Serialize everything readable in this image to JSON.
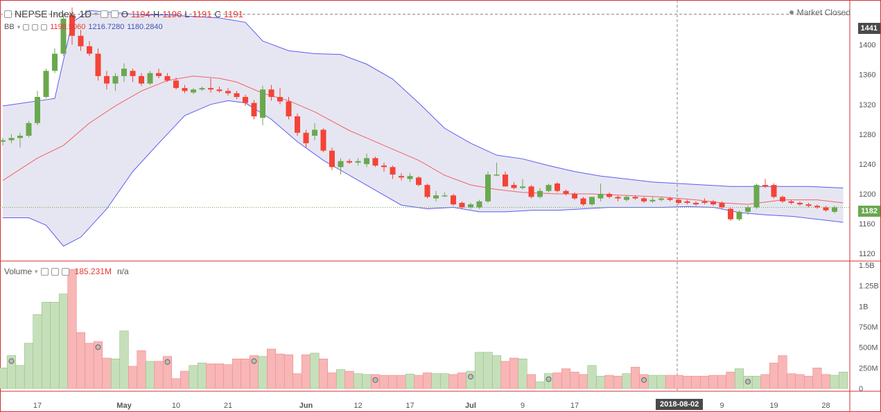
{
  "header": {
    "symbol": "NEPSE Index, 1D",
    "ohlc": {
      "o_label": "O",
      "o": "1194",
      "h_label": "H",
      "h": "1196",
      "l_label": "L",
      "l": "1191",
      "c_label": "C",
      "c": "1191"
    },
    "status": "Market Closed",
    "bb_label": "BB",
    "bb_values": [
      "1198.5060",
      "1216.7280",
      "1180.2840"
    ],
    "volume_label": "Volume",
    "volume_value": "185.231M",
    "volume_na": "n/a",
    "last_price_tag": "1182",
    "crosshair_price_tag": "1441",
    "crosshair_date_tag": "2018-08-02"
  },
  "colors": {
    "up": "#6aa84f",
    "down": "#f44336",
    "up_vol": "#c6dfbb",
    "down_vol": "#f8b6b6",
    "bb_fill": "#e6e6f2",
    "bb_band": "#5c5cf2",
    "bb_mid": "#f06262",
    "frame": "#d32f2f"
  },
  "chart_data": [
    {
      "type": "candlestick",
      "title": "NEPSE Index, 1D",
      "ylim": [
        1110,
        1460
      ],
      "y_ticks": [
        1120,
        1160,
        1200,
        1240,
        1280,
        1320,
        1360,
        1400
      ],
      "x_tick_labels": [
        {
          "label": "17",
          "i": 4
        },
        {
          "label": "May",
          "i": 14
        },
        {
          "label": "10",
          "i": 20
        },
        {
          "label": "21",
          "i": 26
        },
        {
          "label": "Jun",
          "i": 35
        },
        {
          "label": "12",
          "i": 41
        },
        {
          "label": "17",
          "i": 47
        },
        {
          "label": "Jul",
          "i": 54
        },
        {
          "label": "9",
          "i": 60
        },
        {
          "label": "17",
          "i": 66
        },
        {
          "label": "9",
          "i": 83
        },
        {
          "label": "19",
          "i": 89
        },
        {
          "label": "28",
          "i": 95
        }
      ],
      "candles": [
        [
          1270,
          1275,
          1265,
          1272
        ],
        [
          1272,
          1280,
          1268,
          1275
        ],
        [
          1275,
          1282,
          1262,
          1278
        ],
        [
          1278,
          1298,
          1276,
          1295
        ],
        [
          1295,
          1338,
          1292,
          1330
        ],
        [
          1330,
          1368,
          1328,
          1365
        ],
        [
          1365,
          1395,
          1362,
          1388
        ],
        [
          1388,
          1440,
          1385,
          1435
        ],
        [
          1440,
          1450,
          1400,
          1412
        ],
        [
          1412,
          1420,
          1392,
          1398
        ],
        [
          1398,
          1405,
          1385,
          1388
        ],
        [
          1388,
          1395,
          1352,
          1358
        ],
        [
          1358,
          1365,
          1340,
          1348
        ],
        [
          1348,
          1362,
          1338,
          1358
        ],
        [
          1358,
          1375,
          1350,
          1368
        ],
        [
          1365,
          1368,
          1350,
          1358
        ],
        [
          1358,
          1362,
          1345,
          1348
        ],
        [
          1348,
          1365,
          1346,
          1362
        ],
        [
          1362,
          1368,
          1355,
          1358
        ],
        [
          1358,
          1362,
          1350,
          1352
        ],
        [
          1352,
          1356,
          1340,
          1342
        ],
        [
          1342,
          1346,
          1335,
          1338
        ],
        [
          1336,
          1342,
          1334,
          1340
        ],
        [
          1340,
          1344,
          1338,
          1342
        ],
        [
          1342,
          1355,
          1336,
          1340
        ],
        [
          1340,
          1344,
          1336,
          1338
        ],
        [
          1338,
          1342,
          1332,
          1335
        ],
        [
          1335,
          1338,
          1327,
          1330
        ],
        [
          1330,
          1333,
          1318,
          1322
        ],
        [
          1322,
          1326,
          1300,
          1304
        ],
        [
          1302,
          1345,
          1292,
          1340
        ],
        [
          1340,
          1346,
          1325,
          1330
        ],
        [
          1330,
          1342,
          1320,
          1324
        ],
        [
          1324,
          1330,
          1300,
          1304
        ],
        [
          1304,
          1308,
          1278,
          1282
        ],
        [
          1282,
          1286,
          1262,
          1268
        ],
        [
          1278,
          1295,
          1272,
          1286
        ],
        [
          1286,
          1288,
          1256,
          1258
        ],
        [
          1258,
          1262,
          1232,
          1236
        ],
        [
          1236,
          1248,
          1226,
          1244
        ],
        [
          1244,
          1247,
          1240,
          1242
        ],
        [
          1242,
          1248,
          1238,
          1244
        ],
        [
          1240,
          1254,
          1236,
          1248
        ],
        [
          1248,
          1250,
          1236,
          1238
        ],
        [
          1238,
          1242,
          1230,
          1236
        ],
        [
          1236,
          1238,
          1220,
          1226
        ],
        [
          1224,
          1228,
          1218,
          1222
        ],
        [
          1220,
          1228,
          1216,
          1224
        ],
        [
          1222,
          1224,
          1210,
          1212
        ],
        [
          1212,
          1214,
          1194,
          1196
        ],
        [
          1194,
          1204,
          1190,
          1198
        ],
        [
          1198,
          1202,
          1196,
          1198
        ],
        [
          1198,
          1200,
          1184,
          1186
        ],
        [
          1188,
          1190,
          1180,
          1182
        ],
        [
          1182,
          1188,
          1180,
          1186
        ],
        [
          1182,
          1192,
          1180,
          1190
        ],
        [
          1190,
          1230,
          1188,
          1226
        ],
        [
          1226,
          1242,
          1224,
          1226
        ],
        [
          1226,
          1230,
          1210,
          1210
        ],
        [
          1212,
          1216,
          1206,
          1208
        ],
        [
          1208,
          1220,
          1206,
          1210
        ],
        [
          1210,
          1212,
          1194,
          1196
        ],
        [
          1196,
          1208,
          1194,
          1204
        ],
        [
          1204,
          1214,
          1202,
          1212
        ],
        [
          1214,
          1216,
          1202,
          1204
        ],
        [
          1204,
          1206,
          1198,
          1200
        ],
        [
          1200,
          1202,
          1192,
          1194
        ],
        [
          1194,
          1196,
          1184,
          1186
        ],
        [
          1186,
          1196,
          1184,
          1196
        ],
        [
          1194,
          1214,
          1190,
          1200
        ],
        [
          1200,
          1202,
          1194,
          1196
        ],
        [
          1196,
          1198,
          1190,
          1194
        ],
        [
          1192,
          1198,
          1190,
          1196
        ],
        [
          1196,
          1198,
          1192,
          1194
        ],
        [
          1194,
          1196,
          1188,
          1190
        ],
        [
          1190,
          1196,
          1188,
          1192
        ],
        [
          1192,
          1196,
          1190,
          1194
        ],
        [
          1194,
          1196,
          1190,
          1192
        ],
        [
          1192,
          1194,
          1186,
          1188
        ],
        [
          1190,
          1192,
          1186,
          1188
        ],
        [
          1188,
          1190,
          1184,
          1186
        ],
        [
          1190,
          1194,
          1186,
          1188
        ],
        [
          1190,
          1192,
          1184,
          1186
        ],
        [
          1188,
          1190,
          1180,
          1182
        ],
        [
          1180,
          1182,
          1164,
          1166
        ],
        [
          1166,
          1178,
          1164,
          1176
        ],
        [
          1176,
          1184,
          1172,
          1182
        ],
        [
          1182,
          1214,
          1180,
          1212
        ],
        [
          1212,
          1220,
          1208,
          1210
        ],
        [
          1212,
          1214,
          1194,
          1196
        ],
        [
          1196,
          1198,
          1188,
          1190
        ],
        [
          1190,
          1192,
          1186,
          1188
        ],
        [
          1188,
          1190,
          1184,
          1186
        ],
        [
          1186,
          1188,
          1182,
          1184
        ],
        [
          1184,
          1186,
          1180,
          1182
        ],
        [
          1182,
          1184,
          1176,
          1178
        ],
        [
          1176,
          1184,
          1174,
          1182
        ]
      ],
      "bb_upper": [
        [
          0,
          1318
        ],
        [
          6,
          1328
        ],
        [
          8,
          1430
        ],
        [
          10,
          1446
        ],
        [
          13,
          1443
        ],
        [
          16,
          1440
        ],
        [
          19,
          1440
        ],
        [
          22,
          1438
        ],
        [
          25,
          1436
        ],
        [
          28,
          1430
        ],
        [
          30,
          1405
        ],
        [
          33,
          1392
        ],
        [
          36,
          1388
        ],
        [
          39,
          1387
        ],
        [
          42,
          1374
        ],
        [
          45,
          1354
        ],
        [
          48,
          1322
        ],
        [
          51,
          1288
        ],
        [
          54,
          1268
        ],
        [
          57,
          1252
        ],
        [
          60,
          1247
        ],
        [
          63,
          1238
        ],
        [
          66,
          1230
        ],
        [
          69,
          1224
        ],
        [
          72,
          1220
        ],
        [
          75,
          1216
        ],
        [
          78,
          1214
        ],
        [
          81,
          1212
        ],
        [
          84,
          1210
        ],
        [
          87,
          1210
        ],
        [
          90,
          1210
        ],
        [
          93,
          1210
        ],
        [
          97,
          1208
        ]
      ],
      "bb_mid": [
        [
          0,
          1218
        ],
        [
          4,
          1248
        ],
        [
          7,
          1265
        ],
        [
          10,
          1295
        ],
        [
          13,
          1318
        ],
        [
          16,
          1338
        ],
        [
          19,
          1352
        ],
        [
          22,
          1358
        ],
        [
          25,
          1355
        ],
        [
          27,
          1350
        ],
        [
          30,
          1335
        ],
        [
          33,
          1325
        ],
        [
          36,
          1310
        ],
        [
          40,
          1285
        ],
        [
          44,
          1265
        ],
        [
          48,
          1245
        ],
        [
          51,
          1225
        ],
        [
          54,
          1212
        ],
        [
          57,
          1206
        ],
        [
          60,
          1202
        ],
        [
          64,
          1200
        ],
        [
          68,
          1200
        ],
        [
          72,
          1198
        ],
        [
          76,
          1196
        ],
        [
          80,
          1192
        ],
        [
          83,
          1188
        ],
        [
          86,
          1186
        ],
        [
          90,
          1192
        ],
        [
          94,
          1192
        ],
        [
          97,
          1188
        ]
      ],
      "bb_lower": [
        [
          0,
          1168
        ],
        [
          3,
          1168
        ],
        [
          5,
          1158
        ],
        [
          7,
          1130
        ],
        [
          9,
          1142
        ],
        [
          12,
          1180
        ],
        [
          15,
          1230
        ],
        [
          18,
          1268
        ],
        [
          21,
          1305
        ],
        [
          24,
          1320
        ],
        [
          26,
          1325
        ],
        [
          28,
          1322
        ],
        [
          31,
          1300
        ],
        [
          34,
          1270
        ],
        [
          37,
          1245
        ],
        [
          40,
          1225
        ],
        [
          43,
          1205
        ],
        [
          46,
          1185
        ],
        [
          49,
          1180
        ],
        [
          52,
          1182
        ],
        [
          55,
          1176
        ],
        [
          58,
          1176
        ],
        [
          61,
          1178
        ],
        [
          64,
          1178
        ],
        [
          67,
          1180
        ],
        [
          70,
          1182
        ],
        [
          73,
          1182
        ],
        [
          76,
          1182
        ],
        [
          79,
          1183
        ],
        [
          82,
          1182
        ],
        [
          85,
          1175
        ],
        [
          88,
          1172
        ],
        [
          91,
          1170
        ],
        [
          94,
          1166
        ],
        [
          97,
          1162
        ]
      ],
      "last_price": 1182
    },
    {
      "type": "bar",
      "title": "Volume",
      "ylim": [
        0,
        1500
      ],
      "y_unit": "M",
      "y_tick_labels": [
        {
          "v": 0,
          "label": "0"
        },
        {
          "v": 250,
          "label": "250M"
        },
        {
          "v": 500,
          "label": "500M"
        },
        {
          "v": 750,
          "label": "750M"
        },
        {
          "v": 1000,
          "label": "1B"
        },
        {
          "v": 1250,
          "label": "1.25B"
        },
        {
          "v": 1500,
          "label": "1.5B"
        }
      ],
      "values": [
        250,
        400,
        280,
        550,
        900,
        1050,
        1050,
        1150,
        1450,
        680,
        550,
        570,
        370,
        360,
        700,
        270,
        460,
        330,
        330,
        390,
        120,
        210,
        280,
        310,
        300,
        300,
        290,
        360,
        360,
        400,
        390,
        480,
        420,
        410,
        180,
        410,
        430,
        360,
        190,
        230,
        210,
        180,
        170,
        170,
        160,
        160,
        160,
        175,
        160,
        190,
        180,
        180,
        170,
        190,
        210,
        440,
        440,
        400,
        330,
        370,
        360,
        170,
        80,
        180,
        190,
        240,
        200,
        170,
        280,
        150,
        160,
        150,
        180,
        260,
        170,
        160,
        160,
        160,
        160,
        150,
        150,
        150,
        160,
        160,
        200,
        240,
        150,
        150,
        170,
        310,
        400,
        180,
        170,
        150,
        250,
        170,
        160,
        200
      ],
      "dividend_markers": [
        1,
        11,
        19,
        29,
        43,
        54,
        63,
        74,
        86
      ]
    }
  ]
}
